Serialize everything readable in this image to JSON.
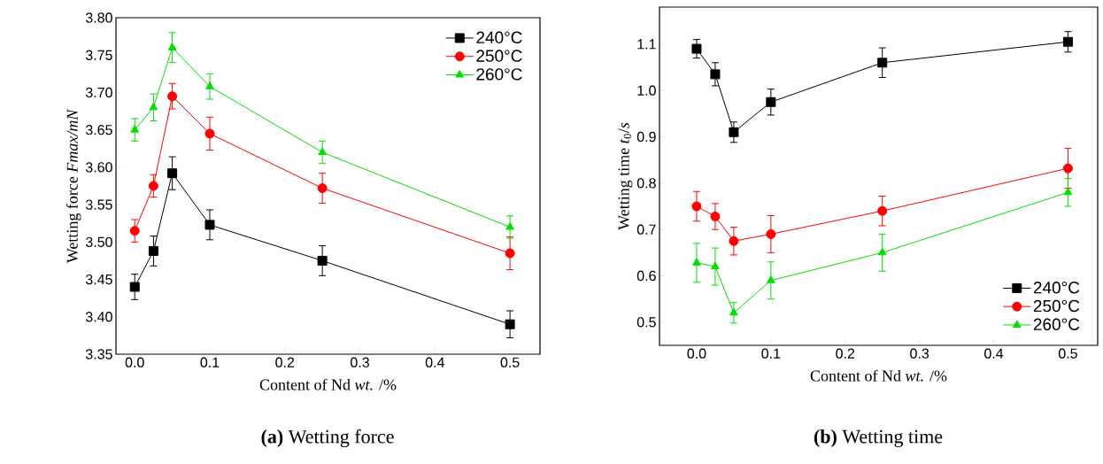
{
  "chart_data": [
    {
      "type": "line",
      "title": "**(a)** Wetting force",
      "xlabel": "Content of  Nd *wt.* /%",
      "ylabel": "Wetting force *Fmax/mN*",
      "x": [
        0,
        0.025,
        0.05,
        0.1,
        0.25,
        0.5
      ],
      "xlim": [
        -0.025,
        0.54
      ],
      "ylim": [
        3.35,
        3.8
      ],
      "xticks": [
        {
          "value": 0,
          "label": "0.0"
        },
        0.1,
        0.2,
        0.3,
        0.4,
        0.5
      ],
      "yticks": [
        3.35,
        {
          "value": 3.4,
          "label": "3.40"
        },
        3.45,
        {
          "value": 3.5,
          "label": "3.50"
        },
        3.55,
        {
          "value": 3.6,
          "label": "3.60"
        },
        3.65,
        {
          "value": 3.7,
          "label": "3.70"
        },
        3.75,
        {
          "value": 3.8,
          "label": "3.80"
        }
      ],
      "legend": "top right",
      "grid": false,
      "series": [
        {
          "name": "240°C",
          "color": "#000000",
          "marker": "square",
          "values": [
            3.44,
            3.488,
            3.592,
            3.523,
            3.475,
            3.39
          ],
          "errors": [
            0.017,
            0.02,
            0.022,
            0.02,
            0.02,
            0.018
          ]
        },
        {
          "name": "250°C",
          "color": "#ff0000",
          "marker": "circle",
          "values": [
            3.515,
            3.575,
            3.695,
            3.645,
            3.572,
            3.485
          ],
          "errors": [
            0.015,
            0.015,
            0.017,
            0.022,
            0.02,
            0.022
          ]
        },
        {
          "name": "260°C",
          "color": "#00e000",
          "marker": "triangle",
          "values": [
            3.65,
            3.68,
            3.76,
            3.708,
            3.62,
            3.52
          ],
          "errors": [
            0.015,
            0.018,
            0.02,
            0.017,
            0.015,
            0.015
          ]
        }
      ]
    },
    {
      "type": "line",
      "title": "**(b)** Wetting time",
      "xlabel": "Content of Nd *wt.* /%",
      "ylabel": "Wetting time *t*$_{0}$/*s*",
      "x": [
        0,
        0.025,
        0.05,
        0.1,
        0.25,
        0.5
      ],
      "xlim": [
        -0.05,
        0.54
      ],
      "ylim": [
        0.45,
        1.18
      ],
      "xticks": [
        {
          "value": 0,
          "label": "0.0"
        },
        0.1,
        0.2,
        0.3,
        0.4,
        0.5
      ],
      "yticks": [
        0.5,
        0.6,
        0.7,
        0.8,
        0.9,
        {
          "value": 1.0,
          "label": "1.0"
        },
        1.1
      ],
      "legend": "bottom right",
      "grid": false,
      "series": [
        {
          "name": "240°C",
          "color": "#000000",
          "marker": "square",
          "values": [
            1.09,
            1.035,
            0.91,
            0.975,
            1.06,
            1.105
          ],
          "errors": [
            0.02,
            0.025,
            0.022,
            0.028,
            0.032,
            0.022
          ]
        },
        {
          "name": "250°C",
          "color": "#ff0000",
          "marker": "circle",
          "values": [
            0.75,
            0.728,
            0.675,
            0.69,
            0.74,
            0.832
          ],
          "errors": [
            0.032,
            0.028,
            0.03,
            0.04,
            0.032,
            0.043
          ]
        },
        {
          "name": "260°C",
          "color": "#00e000",
          "marker": "triangle",
          "values": [
            0.628,
            0.62,
            0.52,
            0.59,
            0.65,
            0.78
          ],
          "errors": [
            0.042,
            0.04,
            0.022,
            0.04,
            0.04,
            0.03
          ]
        }
      ]
    }
  ]
}
